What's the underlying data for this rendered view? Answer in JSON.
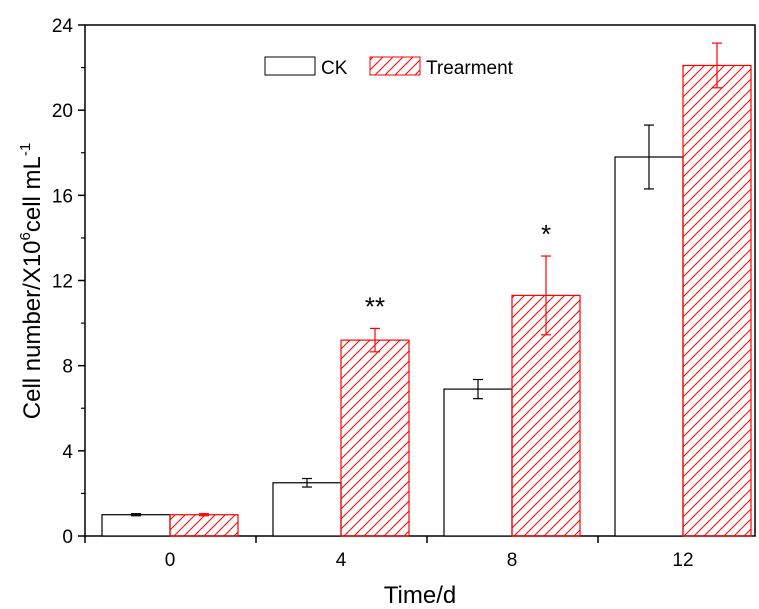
{
  "chart_data": {
    "type": "bar",
    "title": "",
    "xlabel": "Time/d",
    "ylabel": {
      "main": "Cell number/X10",
      "sup1": "6",
      "mid": "cell mL",
      "sup2": "-1"
    },
    "categories": [
      "0",
      "4",
      "8",
      "12"
    ],
    "ylim": [
      0,
      24
    ],
    "yticks": [
      "0",
      "4",
      "8",
      "12",
      "16",
      "20",
      "24"
    ],
    "series": [
      {
        "name": "CK",
        "values": [
          1.0,
          2.5,
          6.9,
          17.8
        ],
        "errors": [
          0.05,
          0.2,
          0.45,
          1.5
        ],
        "color": "#000000",
        "fill": "none"
      },
      {
        "name": "Trearment",
        "values": [
          1.0,
          9.2,
          11.3,
          22.1
        ],
        "errors": [
          0.05,
          0.55,
          1.85,
          1.05
        ],
        "color": "#ff0000",
        "fill": "hatch"
      }
    ],
    "annotations": [
      {
        "category": "4",
        "text": "**"
      },
      {
        "category": "8",
        "text": "*"
      }
    ],
    "legend": "top-center",
    "grid": false
  }
}
